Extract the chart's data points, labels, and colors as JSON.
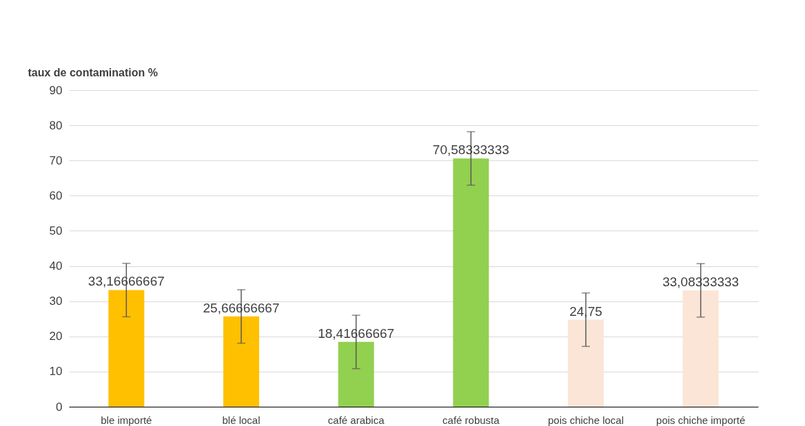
{
  "chart_data": {
    "type": "bar",
    "ylabel": "taux de contamination %",
    "categories": [
      "ble importé",
      "blé local",
      "café arabica",
      "café robusta",
      "pois chiche local",
      "pois chiche importé"
    ],
    "values": [
      33.16666667,
      25.66666667,
      18.41666667,
      70.58333333,
      24.75,
      33.08333333
    ],
    "colors": [
      "#ffc000",
      "#ffc000",
      "#92d050",
      "#92d050",
      "#fbe5d6",
      "#fbe5d6"
    ],
    "errors": [
      7.6,
      7.6,
      7.6,
      7.6,
      7.6,
      7.6
    ],
    "value_labels": [
      "33,16666667",
      "25,66666667",
      "18,41666667",
      "70,58333333",
      "24,75",
      "33,08333333"
    ],
    "ylim": [
      0,
      90
    ],
    "yticks": [
      0,
      10,
      20,
      30,
      40,
      50,
      60,
      70,
      80,
      90
    ],
    "grid": "y",
    "legend": false
  }
}
